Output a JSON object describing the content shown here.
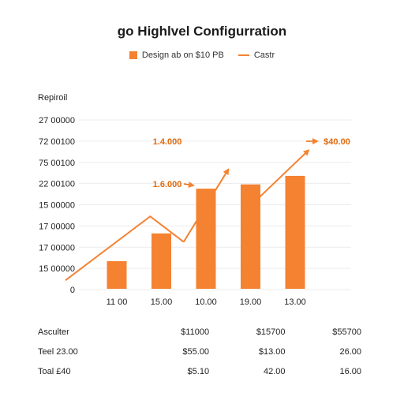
{
  "chart_data": {
    "type": "bar",
    "title": "go Highlvel Configurration",
    "legend": [
      {
        "label": "Design ab on $10 PB",
        "color": "#f58231",
        "kind": "bar"
      },
      {
        "label": "Castr",
        "color": "#f58231",
        "kind": "line"
      }
    ],
    "legend_position": "top",
    "ylabel": "Repiroil",
    "y_tick_labels": [
      "27 00000",
      "72 00100",
      "75 00100",
      "22 00100",
      "15 00000",
      "17 00000",
      "17 00000",
      "15 00000",
      "0"
    ],
    "categories": [
      "11 00",
      "15.00",
      "10.00",
      "19.00",
      "13.00"
    ],
    "series": [
      {
        "name": "Design ab on $10 PB",
        "type": "bar",
        "values": [
          13,
          26,
          47,
          49,
          53
        ]
      },
      {
        "name": "Castr",
        "type": "line",
        "points": [
          [
            -1.15,
            4
          ],
          [
            0.75,
            34
          ],
          [
            1.5,
            22
          ],
          [
            2.5,
            56
          ],
          [
            3.1,
            41
          ],
          [
            4.3,
            65
          ]
        ]
      }
    ],
    "ylim": [
      0,
      80
    ],
    "grid": true,
    "annotations": [
      {
        "text": "1.4.000",
        "color": "#e06a10"
      },
      {
        "text": "1.6.000",
        "color": "#e06a10"
      },
      {
        "text": "$40.00",
        "color": "#e06a10"
      }
    ]
  },
  "summary": {
    "header": [
      "Asculter",
      "$11000",
      "$15700",
      "$55700"
    ],
    "rows": [
      [
        "Teel 23.00",
        "$55.00",
        "$13.00",
        "26.00"
      ],
      [
        "Toal £40",
        "$5.10",
        "42.00",
        "16.00"
      ]
    ]
  }
}
